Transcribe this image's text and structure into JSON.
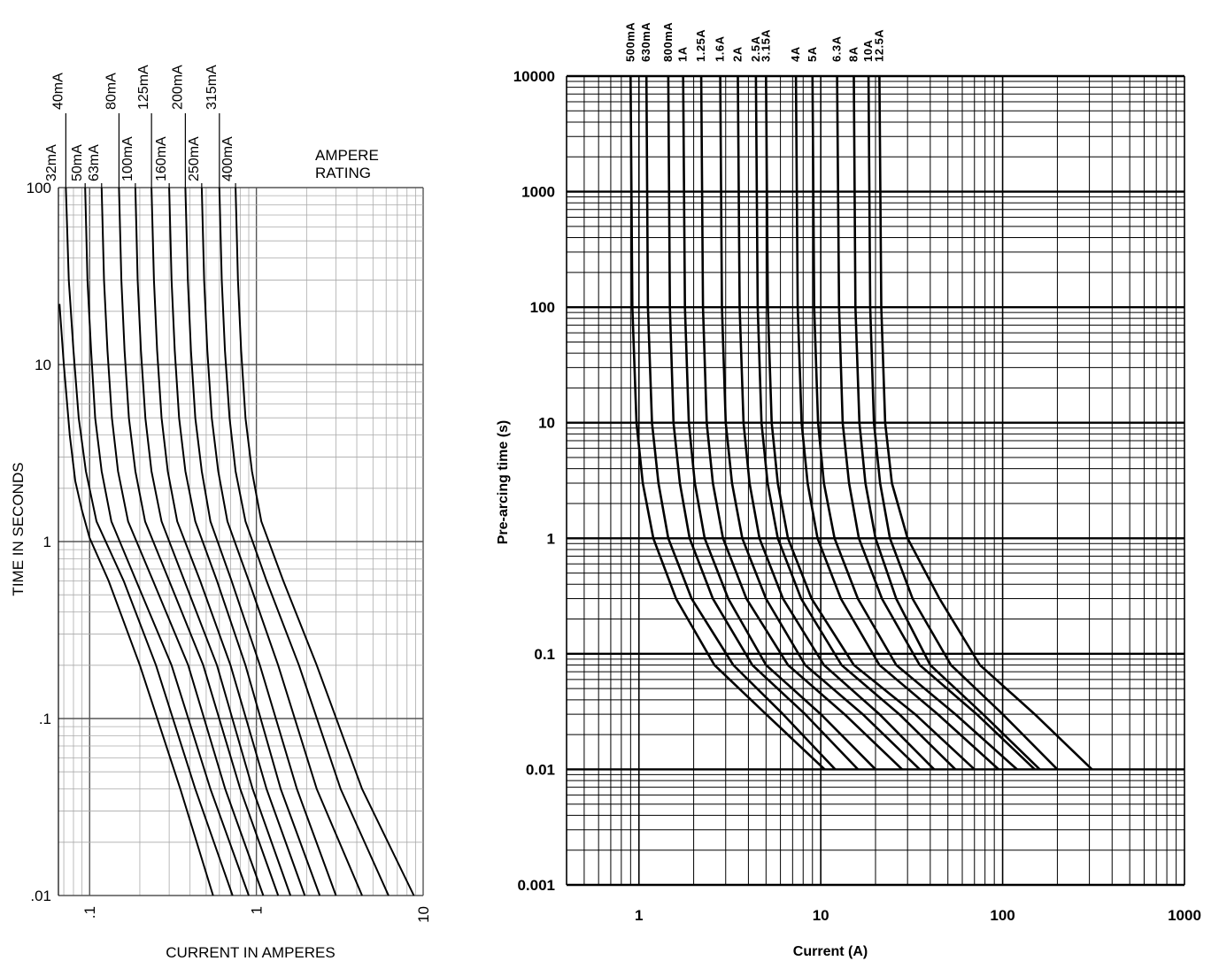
{
  "chart_data": [
    {
      "type": "line",
      "xlabel": "CURRENT IN AMPERES",
      "ylabel": "TIME IN SECONDS",
      "legend_title": [
        "AMPERE",
        "RATING"
      ],
      "x_scale": "log",
      "y_scale": "log",
      "xlim": [
        0.065,
        10
      ],
      "ylim": [
        0.01,
        100
      ],
      "grid": true,
      "x_ticks": [
        {
          "v": 0.1,
          "label": ".1"
        },
        {
          "v": 1,
          "label": "1"
        },
        {
          "v": 10,
          "label": "10"
        }
      ],
      "y_ticks": [
        {
          "v": 100,
          "label": "100"
        },
        {
          "v": 10,
          "label": "10"
        },
        {
          "v": 1,
          "label": "1"
        },
        {
          "v": 0.1,
          "label": ".1"
        },
        {
          "v": 0.01,
          "label": ".01"
        }
      ],
      "series": [
        {
          "name": "32mA",
          "label_row": "lower",
          "x": [
            0.066,
            0.07,
            0.076,
            0.082,
            0.09,
            0.1,
            0.13,
            0.2,
            0.35,
            0.55
          ],
          "y": [
            22,
            10,
            4,
            2.2,
            1.5,
            1.05,
            0.6,
            0.2,
            0.04,
            0.01
          ]
        },
        {
          "name": "40mA",
          "label_row": "upper",
          "x": [
            0.072,
            0.075,
            0.08,
            0.086,
            0.095,
            0.11,
            0.16,
            0.25,
            0.43,
            0.72
          ],
          "y": [
            100,
            30,
            12,
            5,
            2.5,
            1.3,
            0.6,
            0.2,
            0.04,
            0.01
          ]
        },
        {
          "name": "50mA",
          "label_row": "lower",
          "x": [
            0.094,
            0.097,
            0.102,
            0.108,
            0.118,
            0.135,
            0.19,
            0.31,
            0.53,
            0.9
          ],
          "y": [
            100,
            30,
            12,
            5,
            2.5,
            1.3,
            0.6,
            0.2,
            0.04,
            0.01
          ]
        },
        {
          "name": "63mA",
          "label_row": "lower",
          "x": [
            0.118,
            0.122,
            0.128,
            0.136,
            0.148,
            0.17,
            0.24,
            0.39,
            0.65,
            1.1
          ],
          "y": [
            100,
            30,
            12,
            5,
            2.5,
            1.3,
            0.6,
            0.2,
            0.04,
            0.01
          ]
        },
        {
          "name": "80mA",
          "label_row": "upper",
          "x": [
            0.15,
            0.155,
            0.162,
            0.172,
            0.188,
            0.215,
            0.3,
            0.48,
            0.8,
            1.35
          ],
          "y": [
            100,
            30,
            12,
            5,
            2.5,
            1.3,
            0.6,
            0.2,
            0.04,
            0.01
          ]
        },
        {
          "name": "100mA",
          "label_row": "lower",
          "x": [
            0.188,
            0.194,
            0.203,
            0.216,
            0.235,
            0.27,
            0.37,
            0.58,
            0.95,
            1.6
          ],
          "y": [
            100,
            30,
            12,
            5,
            2.5,
            1.3,
            0.6,
            0.2,
            0.04,
            0.01
          ]
        },
        {
          "name": "125mA",
          "label_row": "upper",
          "x": [
            0.235,
            0.243,
            0.254,
            0.27,
            0.294,
            0.335,
            0.46,
            0.7,
            1.15,
            1.95
          ],
          "y": [
            100,
            30,
            12,
            5,
            2.5,
            1.3,
            0.6,
            0.2,
            0.04,
            0.01
          ]
        },
        {
          "name": "160mA",
          "label_row": "lower",
          "x": [
            0.3,
            0.31,
            0.324,
            0.344,
            0.375,
            0.43,
            0.58,
            0.86,
            1.4,
            2.4
          ],
          "y": [
            100,
            30,
            12,
            5,
            2.5,
            1.3,
            0.6,
            0.2,
            0.04,
            0.01
          ]
        },
        {
          "name": "200mA",
          "label_row": "upper",
          "x": [
            0.375,
            0.388,
            0.405,
            0.43,
            0.47,
            0.53,
            0.71,
            1.05,
            1.75,
            3.0
          ],
          "y": [
            100,
            30,
            12,
            5,
            2.5,
            1.3,
            0.6,
            0.2,
            0.04,
            0.01
          ]
        },
        {
          "name": "250mA",
          "label_row": "lower",
          "x": [
            0.47,
            0.486,
            0.508,
            0.54,
            0.59,
            0.67,
            0.9,
            1.35,
            2.3,
            4.3
          ],
          "y": [
            100,
            30,
            12,
            5,
            2.5,
            1.3,
            0.6,
            0.2,
            0.04,
            0.01
          ]
        },
        {
          "name": "315mA",
          "label_row": "upper",
          "x": [
            0.6,
            0.62,
            0.648,
            0.69,
            0.75,
            0.86,
            1.15,
            1.8,
            3.2,
            6.2
          ],
          "y": [
            100,
            30,
            12,
            5,
            2.5,
            1.3,
            0.6,
            0.2,
            0.04,
            0.01
          ]
        },
        {
          "name": "400mA",
          "label_row": "lower",
          "x": [
            0.75,
            0.775,
            0.81,
            0.86,
            0.94,
            1.07,
            1.45,
            2.3,
            4.3,
            8.8
          ],
          "y": [
            100,
            30,
            12,
            5,
            2.5,
            1.3,
            0.6,
            0.2,
            0.04,
            0.01
          ]
        }
      ]
    },
    {
      "type": "line",
      "xlabel": "Current (A)",
      "ylabel": "Pre-arcing time (s)",
      "x_scale": "log",
      "y_scale": "log",
      "xlim": [
        0.4,
        1000
      ],
      "ylim": [
        0.001,
        10000
      ],
      "grid": true,
      "x_ticks": [
        {
          "v": 1,
          "label": "1"
        },
        {
          "v": 10,
          "label": "10"
        },
        {
          "v": 100,
          "label": "100"
        },
        {
          "v": 1000,
          "label": "1000"
        }
      ],
      "y_ticks": [
        {
          "v": 10000,
          "label": "10000"
        },
        {
          "v": 1000,
          "label": "1000"
        },
        {
          "v": 100,
          "label": "100"
        },
        {
          "v": 10,
          "label": "10"
        },
        {
          "v": 1,
          "label": "1"
        },
        {
          "v": 0.1,
          "label": "0.1"
        },
        {
          "v": 0.01,
          "label": "0.01"
        },
        {
          "v": 0.001,
          "label": "0.001"
        }
      ],
      "series": [
        {
          "name": "500mA",
          "x": [
            0.9,
            0.92,
            0.97,
            1.05,
            1.2,
            1.6,
            2.6,
            5.0,
            10.5
          ],
          "y": [
            10000,
            100,
            10,
            3,
            1,
            0.3,
            0.08,
            0.03,
            0.01
          ]
        },
        {
          "name": "630mA",
          "x": [
            1.1,
            1.12,
            1.18,
            1.28,
            1.45,
            1.95,
            3.3,
            6.2,
            12.0
          ],
          "y": [
            10000,
            100,
            10,
            3,
            1,
            0.3,
            0.08,
            0.03,
            0.01
          ]
        },
        {
          "name": "800mA",
          "x": [
            1.45,
            1.48,
            1.55,
            1.68,
            1.9,
            2.55,
            4.2,
            8.2,
            16.0
          ],
          "y": [
            10000,
            100,
            10,
            3,
            1,
            0.3,
            0.08,
            0.03,
            0.01
          ]
        },
        {
          "name": "1A",
          "x": [
            1.75,
            1.79,
            1.88,
            2.03,
            2.3,
            3.1,
            5.0,
            10.0,
            20.0
          ],
          "y": [
            10000,
            100,
            10,
            3,
            1,
            0.3,
            0.08,
            0.03,
            0.01
          ]
        },
        {
          "name": "1.25A",
          "x": [
            2.2,
            2.25,
            2.36,
            2.55,
            2.9,
            3.9,
            6.6,
            13.5,
            28.0
          ],
          "y": [
            10000,
            100,
            10,
            3,
            1,
            0.3,
            0.08,
            0.03,
            0.01
          ]
        },
        {
          "name": "1.6A",
          "x": [
            2.8,
            2.86,
            3.0,
            3.25,
            3.7,
            5.0,
            8.2,
            17.0,
            35.0
          ],
          "y": [
            10000,
            100,
            10,
            3,
            1,
            0.3,
            0.08,
            0.03,
            0.01
          ]
        },
        {
          "name": "2A",
          "x": [
            3.5,
            3.58,
            3.76,
            4.06,
            4.6,
            6.2,
            10.4,
            21.0,
            42.0
          ],
          "y": [
            10000,
            100,
            10,
            3,
            1,
            0.3,
            0.08,
            0.03,
            0.01
          ]
        },
        {
          "name": "2.5A",
          "x": [
            4.4,
            4.5,
            4.72,
            5.1,
            5.8,
            7.8,
            13.0,
            27.0,
            55.0
          ],
          "y": [
            10000,
            100,
            10,
            3,
            1,
            0.3,
            0.08,
            0.03,
            0.01
          ]
        },
        {
          "name": "3.15A",
          "x": [
            5.0,
            5.12,
            5.37,
            5.8,
            6.6,
            8.9,
            15.2,
            33.0,
            70.0
          ],
          "y": [
            10000,
            100,
            10,
            3,
            1,
            0.3,
            0.08,
            0.03,
            0.01
          ]
        },
        {
          "name": "4A",
          "x": [
            7.3,
            7.47,
            7.84,
            8.47,
            9.6,
            12.9,
            21.0,
            44.0,
            95.0
          ],
          "y": [
            10000,
            100,
            10,
            3,
            1,
            0.3,
            0.08,
            0.03,
            0.01
          ]
        },
        {
          "name": "5A",
          "x": [
            9.0,
            9.2,
            9.66,
            10.4,
            11.9,
            16.0,
            26.0,
            55.0,
            120.0
          ],
          "y": [
            10000,
            100,
            10,
            3,
            1,
            0.3,
            0.08,
            0.03,
            0.01
          ]
        },
        {
          "name": "6.3A",
          "x": [
            12.3,
            12.6,
            13.2,
            14.3,
            16.2,
            21.7,
            35.0,
            72.0,
            150.0
          ],
          "y": [
            10000,
            100,
            10,
            3,
            1,
            0.3,
            0.08,
            0.03,
            0.01
          ]
        },
        {
          "name": "8A",
          "x": [
            15.2,
            15.5,
            16.3,
            17.6,
            20.0,
            26.0,
            40.0,
            78.0,
            160.0
          ],
          "y": [
            10000,
            100,
            10,
            3,
            1,
            0.3,
            0.08,
            0.03,
            0.01
          ]
        },
        {
          "name": "10A",
          "x": [
            18.3,
            18.7,
            19.6,
            21.2,
            24.0,
            32.0,
            52.0,
            100.0,
            200.0
          ],
          "y": [
            10000,
            100,
            10,
            3,
            1,
            0.3,
            0.08,
            0.03,
            0.01
          ]
        },
        {
          "name": "12.5A",
          "x": [
            21.0,
            21.5,
            22.6,
            24.6,
            30.0,
            45.0,
            75.0,
            150.0,
            310.0
          ],
          "y": [
            10000,
            100,
            10,
            3,
            1,
            0.3,
            0.08,
            0.03,
            0.01
          ]
        }
      ]
    }
  ]
}
